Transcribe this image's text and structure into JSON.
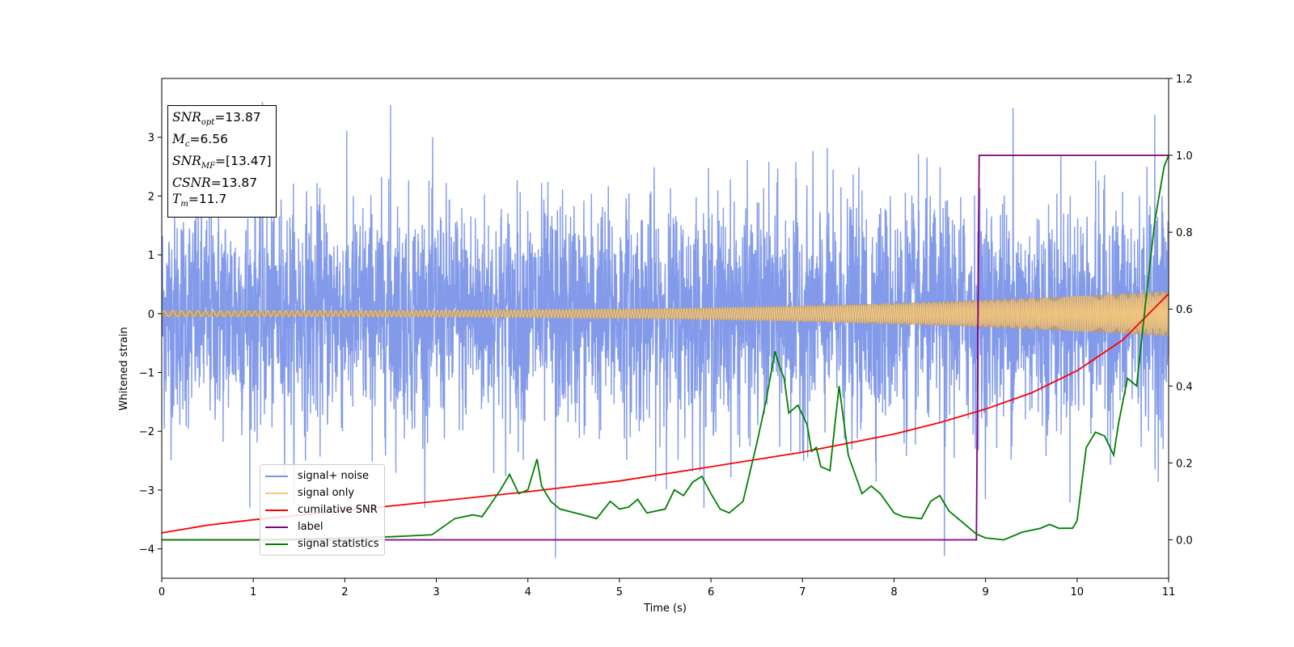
{
  "chart_data": {
    "type": "line",
    "xlabel": "Time (s)",
    "ylabel": "Whitened strain",
    "xlim": [
      0,
      11
    ],
    "ylim": [
      -4.5,
      4.0
    ],
    "y2lim": [
      -0.1,
      1.2
    ],
    "x_ticks": [
      "0",
      "1",
      "2",
      "3",
      "4",
      "5",
      "6",
      "7",
      "8",
      "9",
      "10",
      "11"
    ],
    "y_ticks": [
      "−4",
      "−3",
      "−2",
      "−1",
      "0",
      "1",
      "2",
      "3"
    ],
    "y2_ticks": [
      "0.0",
      "0.2",
      "0.4",
      "0.6",
      "0.8",
      "1.0",
      "1.2"
    ],
    "grid": false,
    "legend_position": "lower-left",
    "annotation": {
      "snr_opt": {
        "name": "SNR",
        "sub": "opt",
        "value": "=13.87"
      },
      "mc": {
        "name": "M",
        "sub": "c",
        "value": "=6.56"
      },
      "snr_mf": {
        "name": "SNR",
        "sub": "MF",
        "value": "=[13.47]"
      },
      "csnr": {
        "name": "CSNR",
        "value": "=13.87"
      },
      "tm": {
        "name": "T",
        "sub": "m",
        "value": "=11.7"
      }
    },
    "series": [
      {
        "name": "signal+ noise",
        "axis": "left",
        "color": "#7b95e8",
        "description_std": 0.95,
        "extremes": [
          [
            1.1,
            3.6
          ],
          [
            2.5,
            3.55
          ],
          [
            4.3,
            -4.15
          ],
          [
            8.55,
            -4.12
          ],
          [
            10.85,
            3.38
          ],
          [
            9.3,
            3.5
          ]
        ]
      },
      {
        "name": "signal only",
        "axis": "left",
        "color": "#f5c77e",
        "amplitude_start": 0.05,
        "amplitude_end": 0.38
      },
      {
        "name": "cumilative SNR",
        "axis": "right",
        "color": "#ff0000",
        "x": [
          0,
          0.5,
          1,
          1.5,
          2,
          3,
          4,
          5,
          6,
          7,
          8,
          8.5,
          9,
          9.5,
          10,
          10.5,
          11
        ],
        "y": [
          0.018,
          0.038,
          0.052,
          0.064,
          0.076,
          0.1,
          0.125,
          0.153,
          0.19,
          0.228,
          0.275,
          0.305,
          0.34,
          0.382,
          0.44,
          0.52,
          0.64
        ]
      },
      {
        "name": "label",
        "axis": "right",
        "color": "#800080",
        "x": [
          0,
          8.9,
          8.93,
          11
        ],
        "y": [
          0,
          0,
          1.0,
          1.0
        ]
      },
      {
        "name": "signal statistics",
        "axis": "right",
        "color": "#008000",
        "x": [
          0,
          1,
          2,
          2.5,
          2.95,
          3.2,
          3.4,
          3.5,
          3.7,
          3.8,
          3.9,
          4.0,
          4.1,
          4.15,
          4.25,
          4.35,
          4.6,
          4.75,
          4.9,
          5.0,
          5.1,
          5.2,
          5.3,
          5.5,
          5.6,
          5.7,
          5.8,
          5.9,
          6.0,
          6.1,
          6.2,
          6.35,
          6.5,
          6.6,
          6.7,
          6.75,
          6.8,
          6.85,
          6.95,
          7.05,
          7.1,
          7.15,
          7.2,
          7.3,
          7.4,
          7.5,
          7.65,
          7.75,
          7.85,
          8.0,
          8.1,
          8.3,
          8.4,
          8.5,
          8.6,
          8.75,
          8.9,
          9.0,
          9.2,
          9.4,
          9.6,
          9.7,
          9.8,
          9.95,
          10.0,
          10.1,
          10.2,
          10.3,
          10.4,
          10.45,
          10.55,
          10.65,
          10.75,
          10.85,
          10.95,
          11.0
        ],
        "y": [
          0.0,
          0.0,
          0.005,
          0.008,
          0.013,
          0.055,
          0.065,
          0.06,
          0.13,
          0.17,
          0.12,
          0.13,
          0.21,
          0.14,
          0.1,
          0.08,
          0.065,
          0.055,
          0.1,
          0.08,
          0.085,
          0.105,
          0.07,
          0.08,
          0.13,
          0.115,
          0.15,
          0.165,
          0.12,
          0.08,
          0.07,
          0.1,
          0.25,
          0.36,
          0.49,
          0.45,
          0.42,
          0.33,
          0.35,
          0.3,
          0.23,
          0.24,
          0.19,
          0.18,
          0.4,
          0.22,
          0.12,
          0.14,
          0.12,
          0.07,
          0.06,
          0.055,
          0.1,
          0.115,
          0.075,
          0.045,
          0.015,
          0.005,
          0.0,
          0.02,
          0.03,
          0.04,
          0.03,
          0.03,
          0.05,
          0.24,
          0.28,
          0.27,
          0.22,
          0.3,
          0.42,
          0.4,
          0.62,
          0.83,
          0.97,
          1.0
        ]
      }
    ]
  }
}
